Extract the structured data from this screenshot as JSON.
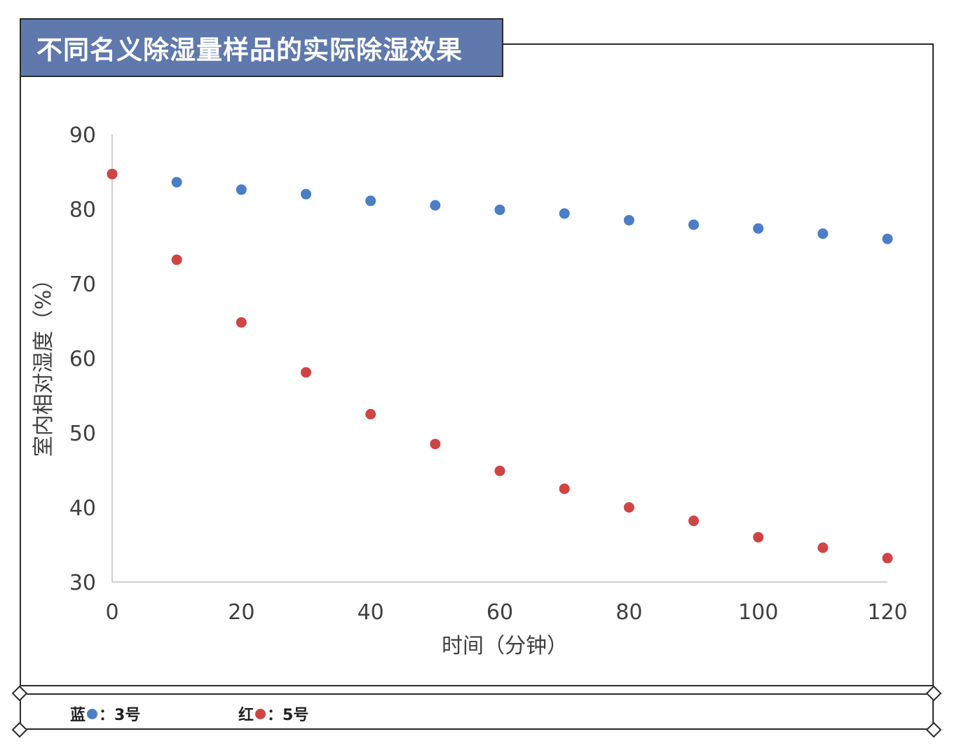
{
  "title": "不同名义除湿量样品的实际除湿效果",
  "legend": {
    "blue_prefix": "蓝",
    "blue_suffix": "：3号",
    "red_prefix": "红",
    "red_suffix": "：5号"
  },
  "colors": {
    "title_bg": "#5f79ad",
    "blue": "#4a7ec7",
    "red": "#d04444",
    "axis": "#d0d0d0"
  },
  "chart_data": {
    "type": "scatter",
    "title": "不同名义除湿量样品的实际除湿效果",
    "xlabel": "时间（分钟）",
    "ylabel": "室内相对湿度（%）",
    "xlim": [
      0,
      120
    ],
    "ylim": [
      30,
      90
    ],
    "xticks": [
      0,
      20,
      40,
      60,
      80,
      100,
      120
    ],
    "yticks": [
      30,
      40,
      50,
      60,
      70,
      80,
      90
    ],
    "grid": false,
    "legend_position": "bottom",
    "series": [
      {
        "name": "3号",
        "color": "#4a7ec7",
        "x": [
          0,
          10,
          20,
          30,
          40,
          50,
          60,
          70,
          80,
          90,
          100,
          110,
          120
        ],
        "y": [
          84.7,
          83.6,
          82.6,
          82.0,
          81.1,
          80.5,
          79.9,
          79.4,
          78.5,
          77.9,
          77.4,
          76.7,
          76.0
        ]
      },
      {
        "name": "5号",
        "color": "#d04444",
        "x": [
          0,
          10,
          20,
          30,
          40,
          50,
          60,
          70,
          80,
          90,
          100,
          110,
          120
        ],
        "y": [
          84.7,
          73.2,
          64.8,
          58.1,
          52.5,
          48.5,
          44.9,
          42.5,
          40.0,
          38.2,
          36.0,
          34.6,
          33.2
        ]
      }
    ]
  }
}
